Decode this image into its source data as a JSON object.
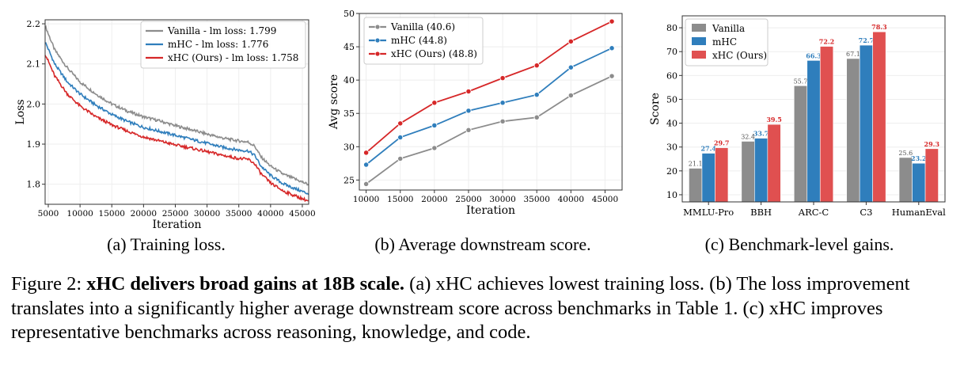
{
  "colors": {
    "vanilla": "#8c8c8c",
    "mhc": "#2f7ebc",
    "xhc": "#d62728",
    "xhc_bar": "#e05050",
    "grid": "#eeeeee"
  },
  "chart_data": [
    {
      "id": "a",
      "type": "line",
      "xlabel": "Iteration",
      "ylabel": "Loss",
      "xlim": [
        4500,
        46000
      ],
      "ylim": [
        1.75,
        2.21
      ],
      "xticks": [
        5000,
        10000,
        15000,
        20000,
        25000,
        30000,
        35000,
        40000,
        45000
      ],
      "yticks": [
        1.8,
        1.9,
        2.0,
        2.1,
        2.2
      ],
      "grid": true,
      "legend": "top-right",
      "series": [
        {
          "name": "Vanilla - lm loss: 1.799",
          "color_key": "vanilla",
          "x": [
            4500,
            6000,
            8000,
            10000,
            12500,
            15000,
            17500,
            20000,
            22500,
            25000,
            27500,
            30000,
            32500,
            35000,
            36500,
            37500,
            38500,
            40000,
            42000,
            44000,
            46000
          ],
          "y": [
            2.195,
            2.135,
            2.09,
            2.055,
            2.025,
            2.0,
            1.982,
            1.968,
            1.958,
            1.946,
            1.936,
            1.925,
            1.915,
            1.908,
            1.905,
            1.895,
            1.868,
            1.845,
            1.825,
            1.812,
            1.799
          ]
        },
        {
          "name": "mHC - lm loss: 1.776",
          "color_key": "mhc",
          "x": [
            4500,
            6000,
            8000,
            10000,
            12500,
            15000,
            17500,
            20000,
            22500,
            25000,
            27500,
            30000,
            32500,
            35000,
            36500,
            37500,
            38500,
            40000,
            42000,
            44000,
            46000
          ],
          "y": [
            2.155,
            2.1,
            2.055,
            2.025,
            1.997,
            1.974,
            1.956,
            1.942,
            1.932,
            1.922,
            1.912,
            1.902,
            1.892,
            1.885,
            1.883,
            1.872,
            1.845,
            1.822,
            1.801,
            1.788,
            1.776
          ]
        },
        {
          "name": "xHC (Ours) - lm loss: 1.758",
          "color_key": "xhc",
          "x": [
            4500,
            6000,
            8000,
            10000,
            12500,
            15000,
            17500,
            20000,
            22500,
            25000,
            27500,
            30000,
            32500,
            35000,
            36500,
            37500,
            38500,
            40000,
            42000,
            44000,
            46000
          ],
          "y": [
            2.125,
            2.07,
            2.025,
            1.995,
            1.968,
            1.948,
            1.932,
            1.918,
            1.908,
            1.898,
            1.89,
            1.881,
            1.872,
            1.864,
            1.862,
            1.851,
            1.826,
            1.803,
            1.783,
            1.77,
            1.758
          ]
        }
      ]
    },
    {
      "id": "b",
      "type": "line",
      "xlabel": "Iteration",
      "ylabel": "Avg score",
      "xlim": [
        9000,
        47500
      ],
      "ylim": [
        23.5,
        50
      ],
      "xticks": [
        10000,
        15000,
        20000,
        25000,
        30000,
        35000,
        40000,
        45000
      ],
      "yticks": [
        25,
        30,
        35,
        40,
        45,
        50
      ],
      "grid": true,
      "legend": "top-left",
      "markers": true,
      "series": [
        {
          "name": "Vanilla (40.6)",
          "color_key": "vanilla",
          "x": [
            10000,
            15000,
            20000,
            25000,
            30000,
            35000,
            40000,
            46000
          ],
          "y": [
            24.4,
            28.2,
            29.8,
            32.5,
            33.8,
            34.4,
            37.7,
            40.6
          ]
        },
        {
          "name": "mHC (44.8)",
          "color_key": "mhc",
          "x": [
            10000,
            15000,
            20000,
            25000,
            30000,
            35000,
            40000,
            46000
          ],
          "y": [
            27.3,
            31.4,
            33.2,
            35.4,
            36.6,
            37.8,
            41.9,
            44.8
          ]
        },
        {
          "name": "xHC (Ours) (48.8)",
          "color_key": "xhc",
          "x": [
            10000,
            15000,
            20000,
            25000,
            30000,
            35000,
            40000,
            46000
          ],
          "y": [
            29.1,
            33.5,
            36.6,
            38.3,
            40.3,
            42.2,
            45.8,
            48.8
          ]
        }
      ]
    },
    {
      "id": "c",
      "type": "bar",
      "xlabel": "",
      "ylabel": "Score",
      "ylim": [
        7,
        85
      ],
      "yticks": [
        10,
        20,
        30,
        40,
        50,
        60,
        70,
        80
      ],
      "grid": true,
      "legend": "top-left",
      "categories": [
        "MMLU-Pro",
        "BBH",
        "ARC-C",
        "C3",
        "HumanEval"
      ],
      "series": [
        {
          "name": "Vanilla",
          "color_key": "vanilla",
          "label_color": "#555555",
          "values": [
            21.1,
            32.4,
            55.7,
            67.1,
            25.6
          ],
          "labels": [
            "21.1",
            "32.4",
            "55.7",
            "67.1",
            "25.6"
          ]
        },
        {
          "name": "mHC",
          "color_key": "mhc",
          "label_color": "#2f7ebc",
          "values": [
            27.4,
            33.7,
            66.3,
            72.7,
            23.2
          ],
          "labels": [
            "27.4",
            "33.7",
            "66.3",
            "72.7",
            "23.2"
          ]
        },
        {
          "name": "xHC (Ours)",
          "color_key": "xhc_bar",
          "label_color": "#d62728",
          "values": [
            29.7,
            39.5,
            72.2,
            78.3,
            29.3
          ],
          "labels": [
            "29.7",
            "39.5",
            "72.2",
            "78.3",
            "29.3"
          ]
        }
      ]
    }
  ],
  "subcaptions": {
    "a": "(a) Training loss.",
    "b": "(b) Average downstream score.",
    "c": "(c) Benchmark-level gains."
  },
  "caption": {
    "prefix": "Figure 2: ",
    "bold": "xHC delivers broad gains at 18B scale.",
    "rest": " (a) xHC achieves lowest training loss. (b) The loss improvement translates into a significantly higher average downstream score across benchmarks in Table 1. (c) xHC improves representative benchmarks across reasoning, knowledge, and code."
  }
}
